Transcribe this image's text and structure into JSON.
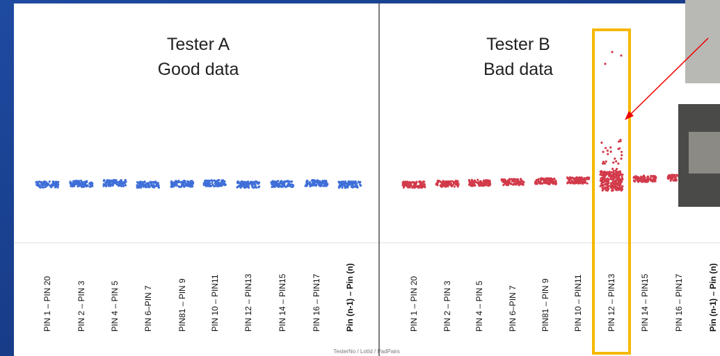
{
  "panels": [
    {
      "title": "Tester A",
      "subtitle": "Good data"
    },
    {
      "title": "Tester B",
      "subtitle": "Bad data"
    }
  ],
  "x_labels": [
    "PIN 1 – PIN 20",
    "PIN 2 – PIN 3",
    "PIN 4 – PIN 5",
    "PIN 6–PIN 7",
    "PIN81 – PIN 9",
    "PIN 10 – PIN11",
    "PIN 12 – PIN13",
    "PIN 14 – PIN15",
    "PIN 16 – PIN17",
    "Pin (n-1) – Pin (n)",
    "PIN 1 – PIN 20",
    "PIN 2 – PIN 3",
    "PIN 4 – PIN 5",
    "PIN 6–PIN 7",
    "PIN81 – PIN 9",
    "PIN 10 – PIN11",
    "PIN 12 – PIN13",
    "PIN 14 – PIN15",
    "PIN 16 – PIN17",
    "Pin (n-1) – Pin (n)"
  ],
  "axis_title": "TesterNo / LotId / PadPairs"
}
